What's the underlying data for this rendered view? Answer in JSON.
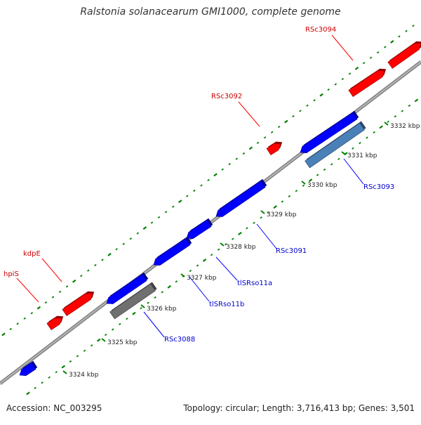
{
  "title": "Ralstonia solanacearum GMI1000, complete genome",
  "footer": {
    "accession": "Accession: NC_003295",
    "summary": "Topology: circular; Length: 3,716,413 bp; Genes: 3,501"
  },
  "ticks": [
    "3324 kbp",
    "3325 kbp",
    "3326 kbp",
    "3327 kbp",
    "3328 kbp",
    "3329 kbp",
    "3330 kbp",
    "3331 kbp",
    "3332 kbp"
  ],
  "gene_labels": {
    "forward": [
      "RSc3094",
      "RSc3092",
      "kdpE",
      "hpiS"
    ],
    "reverse": [
      "RSc3093",
      "RSc3091",
      "tlSRso11a",
      "tlSRso11b",
      "RSc3088"
    ]
  },
  "colors": {
    "forward_gene": "#ff0000",
    "reverse_gene": "#0000ff",
    "rna_gene": "#4a80b8",
    "pseudo_gene": "#707070",
    "backbone": "#888888",
    "tick_mark": "#008000",
    "forward_label": "#cc0000",
    "reverse_label": "#0000cc"
  }
}
